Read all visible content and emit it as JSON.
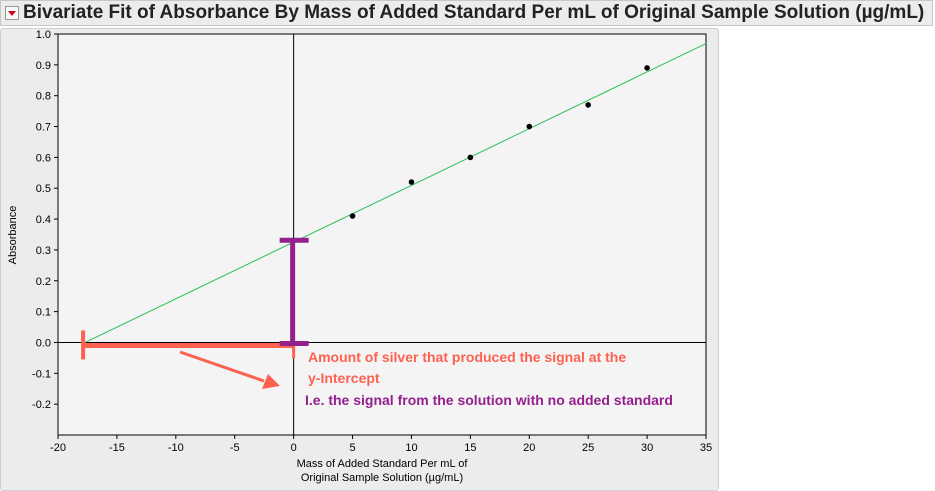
{
  "title": "Bivariate Fit of Absorbance By Mass of Added Standard Per mL of Original Sample Solution (µg/mL)",
  "colors": {
    "fit_line": "#2bbf5c",
    "horizontal_annotation": "#fd6150",
    "vertical_annotation": "#94208e",
    "plot_bg": "#f4f4f4"
  },
  "chart_data": {
    "type": "scatter",
    "title": "Bivariate Fit of Absorbance By Mass of Added Standard Per mL of Original Sample Solution (µg/mL)",
    "xlabel_line1": "Mass of Added Standard Per mL of",
    "xlabel_line2": "Original Sample Solution (µg/mL)",
    "ylabel": "Absorbance",
    "xlim": [
      -20,
      35
    ],
    "ylim": [
      -0.3,
      1.0
    ],
    "xticks": [
      -20,
      -15,
      -10,
      -5,
      0,
      5,
      10,
      15,
      20,
      25,
      30,
      35
    ],
    "yticks": [
      "1.0",
      "0.9",
      "0.8",
      "0.7",
      "0.6",
      "0.5",
      "0.4",
      "0.3",
      "0.2",
      "0.1",
      "0.0",
      "-0.1",
      "-0.2"
    ],
    "points": [
      {
        "x": 5,
        "y": 0.41
      },
      {
        "x": 10,
        "y": 0.52
      },
      {
        "x": 15,
        "y": 0.6
      },
      {
        "x": 20,
        "y": 0.7
      },
      {
        "x": 25,
        "y": 0.77
      },
      {
        "x": 30,
        "y": 0.89
      }
    ],
    "fit": {
      "slope": 0.0184,
      "intercept": 0.325,
      "x_intercept": -17.7
    },
    "grid": false
  },
  "annotations": {
    "line1": "Amount of silver that produced the signal at the",
    "line2": "y-Intercept",
    "line3": "I.e. the signal from the solution with no added standard"
  }
}
